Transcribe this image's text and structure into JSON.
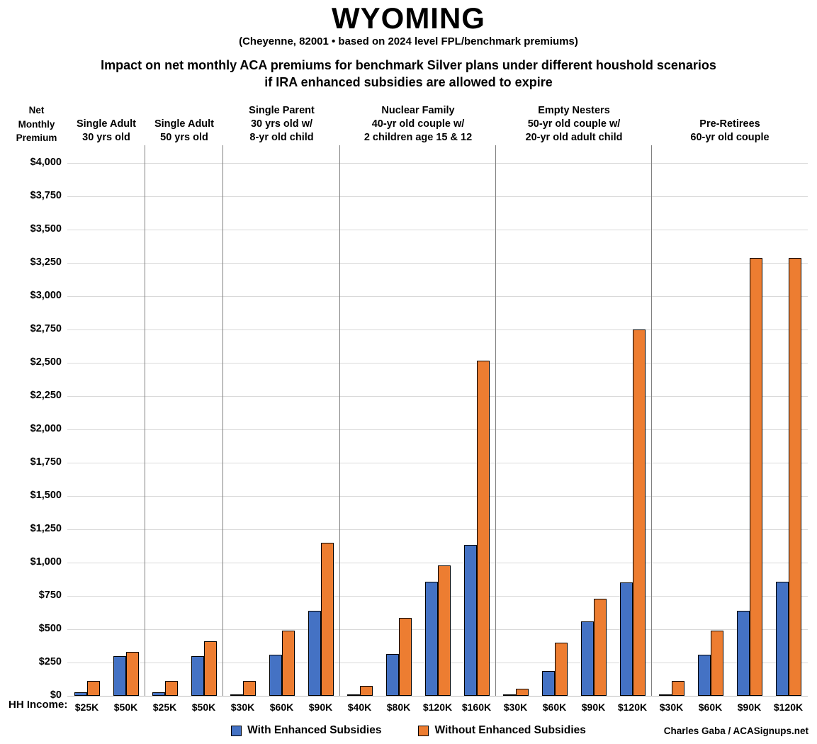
{
  "title": "WYOMING",
  "subtitle": "(Cheyenne, 82001 • based on 2024 level FPL/benchmark premiums)",
  "heading_line1": "Impact on net monthly ACA premiums for benchmark Silver plans under different houshold scenarios",
  "heading_line2": "if IRA enhanced subsidies are allowed to expire",
  "y_axis_header_lines": [
    "Net",
    "Monthly",
    "Premium"
  ],
  "hh_income_label": "HH Income:",
  "credit": "Charles Gaba / ACASignups.net",
  "legend": [
    {
      "label": "With Enhanced Subsidies",
      "color": "#4472C4"
    },
    {
      "label": "Without Enhanced Subsidies",
      "color": "#ED7D31"
    }
  ],
  "colors": {
    "with_enhanced": "#4472C4",
    "without_enhanced": "#ED7D31",
    "gridline": "#D9D9D9",
    "divider": "#808080"
  },
  "chart_data": {
    "type": "bar",
    "title": "Impact on net monthly ACA premiums for benchmark Silver plans under different houshold scenarios if IRA enhanced subsidies are allowed to expire",
    "xlabel": "HH Income",
    "ylabel": "Net Monthly Premium ($)",
    "ylim": [
      0,
      4000
    ],
    "ytick_interval": 250,
    "ytick_labels": [
      "$0",
      "$250",
      "$500",
      "$750",
      "$1,000",
      "$1,250",
      "$1,500",
      "$1,750",
      "$2,000",
      "$2,250",
      "$2,500",
      "$2,750",
      "$3,000",
      "$3,250",
      "$3,500",
      "$3,750",
      "$4,000"
    ],
    "grid": true,
    "legend_position": "bottom",
    "series_names": [
      "With Enhanced Subsidies",
      "Without Enhanced Subsidies"
    ],
    "groups": [
      {
        "header": [
          "Single Adult",
          "30 yrs old"
        ],
        "categories": [
          "$25K",
          "$50K"
        ],
        "with_enhanced": [
          25,
          300
        ],
        "without_enhanced": [
          110,
          330
        ]
      },
      {
        "header": [
          "Single Adult",
          "50 yrs old"
        ],
        "categories": [
          "$25K",
          "$50K"
        ],
        "with_enhanced": [
          25,
          300
        ],
        "without_enhanced": [
          110,
          410
        ]
      },
      {
        "header": [
          "Single Parent",
          "30 yrs old w/",
          "8-yr old child"
        ],
        "categories": [
          "$30K",
          "$60K",
          "$90K"
        ],
        "with_enhanced": [
          10,
          310,
          640
        ],
        "without_enhanced": [
          110,
          490,
          1150
        ]
      },
      {
        "header": [
          "Nuclear Family",
          "40-yr old couple w/",
          "2 children age 15 & 12"
        ],
        "categories": [
          "$40K",
          "$80K",
          "$120K",
          "$160K"
        ],
        "with_enhanced": [
          0,
          315,
          855,
          1135
        ],
        "without_enhanced": [
          75,
          585,
          980,
          2515
        ]
      },
      {
        "header": [
          "Empty Nesters",
          "50-yr old couple w/",
          "20-yr old adult child"
        ],
        "categories": [
          "$30K",
          "$60K",
          "$90K",
          "$120K"
        ],
        "with_enhanced": [
          0,
          185,
          560,
          850
        ],
        "without_enhanced": [
          55,
          400,
          730,
          2750
        ]
      },
      {
        "header": [
          "Pre-Retirees",
          "60-yr old couple"
        ],
        "categories": [
          "$30K",
          "$60K",
          "$90K",
          "$120K"
        ],
        "with_enhanced": [
          10,
          310,
          640,
          855
        ],
        "without_enhanced": [
          110,
          490,
          3285,
          3285
        ]
      }
    ]
  }
}
